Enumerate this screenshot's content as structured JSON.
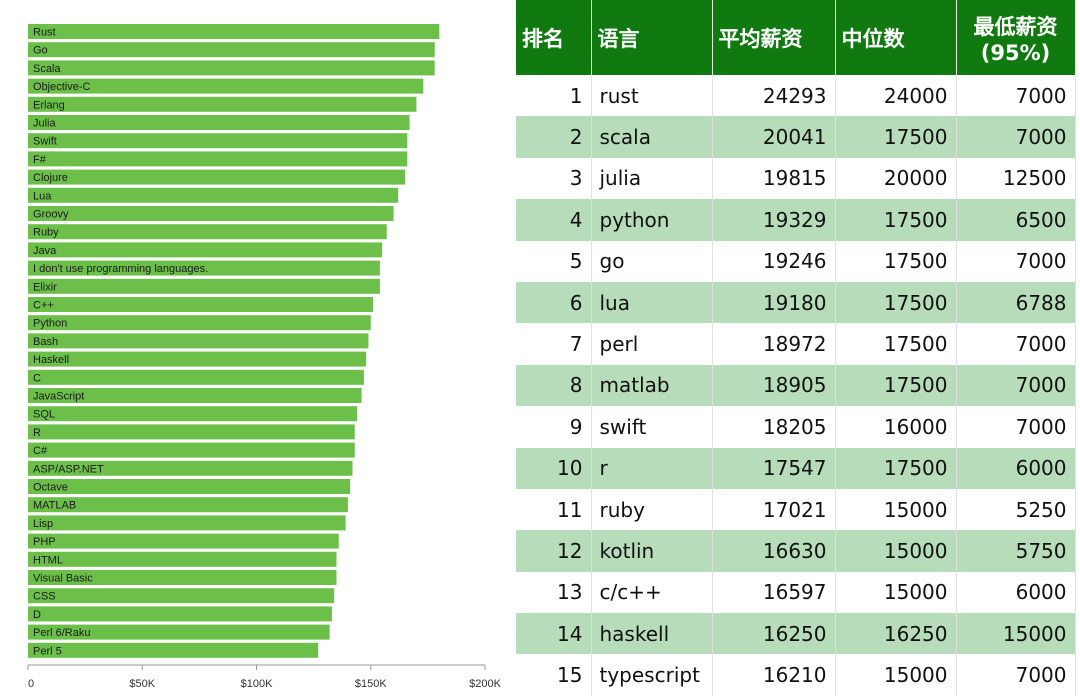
{
  "chart_data": [
    {
      "type": "bar",
      "orientation": "horizontal",
      "categories": [
        "Rust",
        "Go",
        "Scala",
        "Objective-C",
        "Erlang",
        "Julia",
        "Swift",
        "F#",
        "Clojure",
        "Lua",
        "Groovy",
        "Ruby",
        "Java",
        "I don't use programming languages.",
        "Elixir",
        "C++",
        "Python",
        "Bash",
        "Haskell",
        "C",
        "JavaScript",
        "SQL",
        "R",
        "C#",
        "ASP/ASP.NET",
        "Octave",
        "MATLAB",
        "Lisp",
        "PHP",
        "HTML",
        "Visual Basic",
        "CSS",
        "D",
        "Perl 6/Raku",
        "Perl 5"
      ],
      "values": [
        180000,
        178000,
        178000,
        173000,
        170000,
        167000,
        166000,
        166000,
        165000,
        162000,
        160000,
        157000,
        155000,
        154000,
        154000,
        151000,
        150000,
        149000,
        148000,
        147000,
        146000,
        144000,
        143000,
        143000,
        142000,
        141000,
        140000,
        139000,
        136000,
        135000,
        135000,
        134000,
        133000,
        132000,
        127000
      ],
      "xlim": [
        0,
        200000
      ],
      "xticks": [
        "0",
        "$50K",
        "$100K",
        "$150K",
        "$200K"
      ],
      "title": "",
      "xlabel": "",
      "ylabel": "",
      "bar_color": "#6cc04a"
    },
    {
      "type": "table",
      "columns": [
        "排名",
        "语言",
        "平均薪资",
        "中位数",
        "最低薪资\n(95%)"
      ],
      "rows": [
        [
          "1",
          "rust",
          "24293",
          "24000",
          "7000"
        ],
        [
          "2",
          "scala",
          "20041",
          "17500",
          "7000"
        ],
        [
          "3",
          "julia",
          "19815",
          "20000",
          "12500"
        ],
        [
          "4",
          "python",
          "19329",
          "17500",
          "6500"
        ],
        [
          "5",
          "go",
          "19246",
          "17500",
          "7000"
        ],
        [
          "6",
          "lua",
          "19180",
          "17500",
          "6788"
        ],
        [
          "7",
          "perl",
          "18972",
          "17500",
          "7000"
        ],
        [
          "8",
          "matlab",
          "18905",
          "17500",
          "7000"
        ],
        [
          "9",
          "swift",
          "18205",
          "16000",
          "7000"
        ],
        [
          "10",
          "r",
          "17547",
          "17500",
          "6000"
        ],
        [
          "11",
          "ruby",
          "17021",
          "15000",
          "5250"
        ],
        [
          "12",
          "kotlin",
          "16630",
          "15000",
          "5750"
        ],
        [
          "13",
          "c/c++",
          "16597",
          "15000",
          "6000"
        ],
        [
          "14",
          "haskell",
          "16250",
          "16250",
          "15000"
        ],
        [
          "15",
          "typescript",
          "16210",
          "15000",
          "7000"
        ]
      ],
      "header_color": "#107a10",
      "stripe_color": "#b7dcba"
    }
  ]
}
